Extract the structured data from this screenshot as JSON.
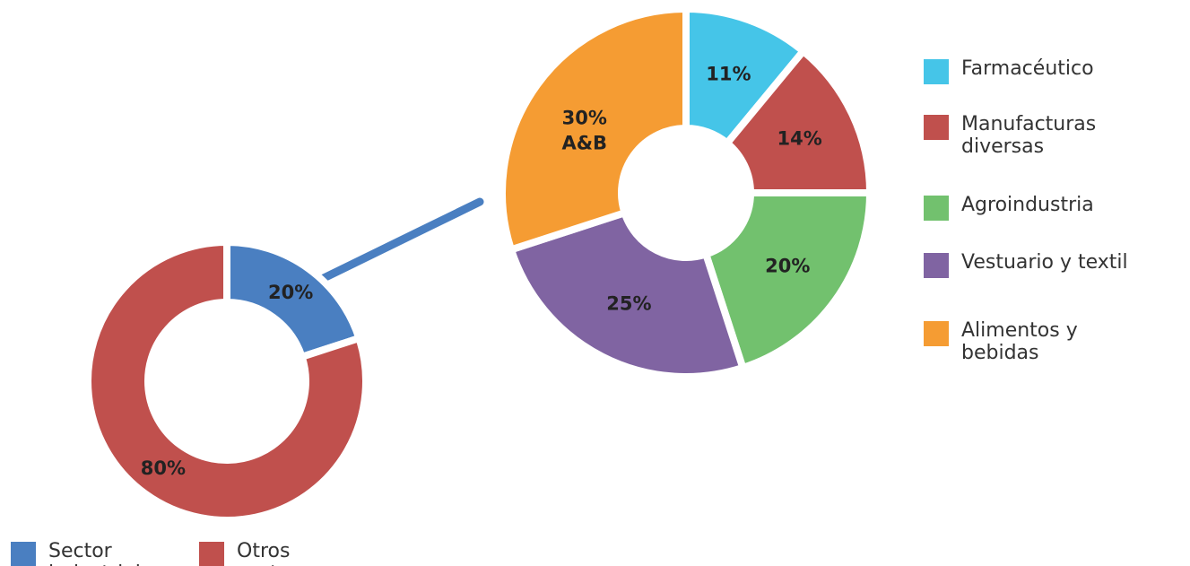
{
  "chart_data": [
    {
      "type": "donut",
      "categories": [
        "Sector industrial",
        "Otros sectores"
      ],
      "values": [
        20,
        80
      ],
      "value_labels": [
        "20%",
        "80%"
      ],
      "colors": [
        "#4a7fc1",
        "#c0504d"
      ],
      "legend": "bottom"
    },
    {
      "type": "donut",
      "categories": [
        "Farmacéutico",
        "Manufacturas diversas",
        "Agroindustria",
        "Vestuario y textil",
        "Alimentos y bebidas"
      ],
      "values": [
        11,
        14,
        20,
        25,
        30
      ],
      "value_labels": [
        "11%",
        "14%",
        "20%",
        "25%",
        "30%"
      ],
      "colors": [
        "#45c5e8",
        "#c0504d",
        "#72c16e",
        "#8064a2",
        "#f59c33"
      ],
      "annotation": "A&B",
      "legend": "right"
    }
  ]
}
